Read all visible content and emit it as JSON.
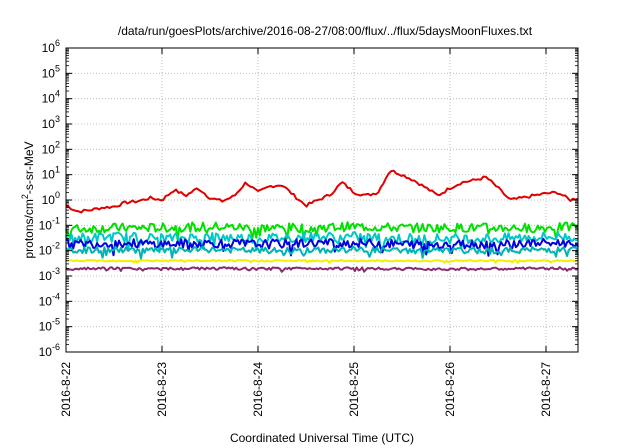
{
  "chart_data": {
    "type": "line",
    "title": "/data/run/goesPlots/archive/2016-08-27/08:00/flux/../flux/5daysMoonFluxes.txt",
    "xlabel": "Coordinated Universal Time (UTC)",
    "ylabel": "protons/cm²-s-sr-MeV",
    "ylabel_parts": {
      "base": "protons/cm",
      "sup": "2",
      "rest": "-s-sr-MeV"
    },
    "xscale": "time",
    "yscale": "log",
    "xlim": [
      "2016-08-22T00:00",
      "2016-08-27T08:00"
    ],
    "ylim": [
      1e-06,
      1000000.0
    ],
    "grid": true,
    "x_ticks": [
      "2016-8-22",
      "2016-8-23",
      "2016-8-24",
      "2016-8-25",
      "2016-8-26",
      "2016-8-27"
    ],
    "y_ticks": [
      {
        "base": "10",
        "exp": "6"
      },
      {
        "base": "10",
        "exp": "5"
      },
      {
        "base": "10",
        "exp": "4"
      },
      {
        "base": "10",
        "exp": "3"
      },
      {
        "base": "10",
        "exp": "2"
      },
      {
        "base": "10",
        "exp": "1"
      },
      {
        "base": "10",
        "exp": "0"
      },
      {
        "base": "10",
        "exp": "-1"
      },
      {
        "base": "10",
        "exp": "-2"
      },
      {
        "base": "10",
        "exp": "-3"
      },
      {
        "base": "10",
        "exp": "-4"
      },
      {
        "base": "10",
        "exp": "-5"
      },
      {
        "base": "10",
        "exp": "-6"
      }
    ],
    "series": [
      {
        "color": "#e00000",
        "x": [
          "2016-08-22T00:00",
          "2016-08-22T03:00",
          "2016-08-22T06:00",
          "2016-08-22T09:00",
          "2016-08-22T12:00",
          "2016-08-22T15:00",
          "2016-08-22T18:00",
          "2016-08-22T21:00",
          "2016-08-23T00:00",
          "2016-08-23T03:00",
          "2016-08-23T06:00",
          "2016-08-23T09:00",
          "2016-08-23T12:00",
          "2016-08-23T15:00",
          "2016-08-23T18:00",
          "2016-08-23T21:00",
          "2016-08-24T00:00",
          "2016-08-24T03:00",
          "2016-08-24T06:00",
          "2016-08-24T09:00",
          "2016-08-24T12:00",
          "2016-08-24T15:00",
          "2016-08-24T18:00",
          "2016-08-24T21:00",
          "2016-08-25T00:00",
          "2016-08-25T03:00",
          "2016-08-25T06:00",
          "2016-08-25T09:00",
          "2016-08-25T12:00",
          "2016-08-25T15:00",
          "2016-08-25T18:00",
          "2016-08-25T21:00",
          "2016-08-26T00:00",
          "2016-08-26T03:00",
          "2016-08-26T06:00",
          "2016-08-26T09:00",
          "2016-08-26T12:00",
          "2016-08-26T15:00",
          "2016-08-26T18:00",
          "2016-08-26T21:00",
          "2016-08-27T00:00",
          "2016-08-27T03:00",
          "2016-08-27T06:00",
          "2016-08-27T08:00"
        ],
        "y": [
          0.6,
          0.35,
          0.4,
          0.5,
          0.55,
          0.8,
          0.9,
          1.2,
          1.0,
          2.5,
          1.5,
          3.0,
          1.2,
          0.9,
          1.4,
          5.0,
          2.0,
          3.5,
          4.0,
          1.5,
          0.6,
          1.0,
          1.6,
          5.0,
          2.0,
          1.5,
          2.0,
          15.0,
          10.0,
          6.0,
          3.0,
          1.5,
          3.0,
          5.0,
          6.0,
          8.0,
          3.0,
          1.0,
          1.2,
          1.5,
          1.8,
          2.0,
          1.0,
          1.2
        ]
      },
      {
        "color": "#00e000",
        "x": [
          "2016-08-22T00:00",
          "2016-08-22T12:00",
          "2016-08-23T00:00",
          "2016-08-23T12:00",
          "2016-08-24T00:00",
          "2016-08-24T12:00",
          "2016-08-25T00:00",
          "2016-08-25T12:00",
          "2016-08-26T00:00",
          "2016-08-26T12:00",
          "2016-08-27T00:00",
          "2016-08-27T08:00"
        ],
        "y": [
          0.07,
          0.08,
          0.08,
          0.09,
          0.08,
          0.08,
          0.09,
          0.08,
          0.08,
          0.08,
          0.08,
          0.09
        ],
        "noise": 0.18
      },
      {
        "color": "#00c8c8",
        "x": [
          "2016-08-22T00:00",
          "2016-08-22T12:00",
          "2016-08-23T00:00",
          "2016-08-23T12:00",
          "2016-08-24T00:00",
          "2016-08-24T12:00",
          "2016-08-25T00:00",
          "2016-08-25T12:00",
          "2016-08-26T00:00",
          "2016-08-26T12:00",
          "2016-08-27T00:00",
          "2016-08-27T08:00"
        ],
        "y": [
          0.03,
          0.035,
          0.03,
          0.035,
          0.03,
          0.035,
          0.035,
          0.03,
          0.03,
          0.03,
          0.035,
          0.035
        ],
        "noise": 0.2
      },
      {
        "color": "#0000e0",
        "x": [
          "2016-08-22T00:00",
          "2016-08-22T12:00",
          "2016-08-23T00:00",
          "2016-08-23T12:00",
          "2016-08-24T00:00",
          "2016-08-24T12:00",
          "2016-08-25T00:00",
          "2016-08-25T12:00",
          "2016-08-26T00:00",
          "2016-08-26T12:00",
          "2016-08-27T00:00",
          "2016-08-27T08:00"
        ],
        "y": [
          0.018,
          0.02,
          0.018,
          0.02,
          0.018,
          0.02,
          0.02,
          0.018,
          0.018,
          0.018,
          0.02,
          0.02
        ],
        "noise": 0.18
      },
      {
        "color": "#00b4b4",
        "x": [
          "2016-08-22T00:00",
          "2016-08-22T12:00",
          "2016-08-23T00:00",
          "2016-08-23T12:00",
          "2016-08-24T00:00",
          "2016-08-24T12:00",
          "2016-08-25T00:00",
          "2016-08-25T12:00",
          "2016-08-26T00:00",
          "2016-08-26T12:00",
          "2016-08-27T00:00",
          "2016-08-27T08:00"
        ],
        "y": [
          0.01,
          0.011,
          0.01,
          0.011,
          0.01,
          0.01,
          0.011,
          0.01,
          0.01,
          0.01,
          0.011,
          0.011
        ],
        "noise": 0.12
      },
      {
        "color": "#f0f000",
        "x": [
          "2016-08-22T00:00",
          "2016-08-22T12:00",
          "2016-08-23T00:00",
          "2016-08-23T12:00",
          "2016-08-24T00:00",
          "2016-08-24T12:00",
          "2016-08-25T00:00",
          "2016-08-25T12:00",
          "2016-08-26T00:00",
          "2016-08-26T12:00",
          "2016-08-27T00:00",
          "2016-08-27T08:00"
        ],
        "y": [
          0.004,
          0.004,
          0.004,
          0.004,
          0.004,
          0.004,
          0.004,
          0.004,
          0.004,
          0.004,
          0.004,
          0.004
        ],
        "noise": 0.03
      },
      {
        "color": "#8b2a6e",
        "x": [
          "2016-08-22T00:00",
          "2016-08-22T12:00",
          "2016-08-23T00:00",
          "2016-08-23T12:00",
          "2016-08-24T00:00",
          "2016-08-24T12:00",
          "2016-08-25T00:00",
          "2016-08-25T12:00",
          "2016-08-26T00:00",
          "2016-08-26T12:00",
          "2016-08-27T00:00",
          "2016-08-27T08:00"
        ],
        "y": [
          0.0019,
          0.002,
          0.0019,
          0.002,
          0.0019,
          0.002,
          0.002,
          0.0019,
          0.0019,
          0.0019,
          0.002,
          0.002
        ],
        "noise": 0.05
      }
    ]
  }
}
